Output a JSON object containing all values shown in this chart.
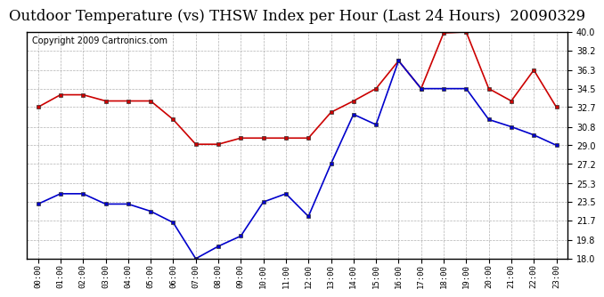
{
  "title": "Outdoor Temperature (vs) THSW Index per Hour (Last 24 Hours)  20090329",
  "copyright": "Copyright 2009 Cartronics.com",
  "hours": [
    "00:00",
    "01:00",
    "02:00",
    "03:00",
    "04:00",
    "05:00",
    "06:00",
    "07:00",
    "08:00",
    "09:00",
    "10:00",
    "11:00",
    "12:00",
    "13:00",
    "14:00",
    "15:00",
    "16:00",
    "17:00",
    "18:00",
    "19:00",
    "20:00",
    "21:00",
    "22:00",
    "23:00"
  ],
  "temp": [
    32.7,
    33.9,
    33.9,
    33.3,
    33.3,
    33.3,
    31.5,
    29.1,
    29.1,
    29.7,
    29.7,
    29.7,
    29.7,
    32.2,
    33.3,
    34.5,
    37.2,
    34.5,
    39.9,
    40.0,
    34.5,
    33.3,
    36.3,
    32.7
  ],
  "thsw": [
    23.3,
    24.3,
    24.3,
    23.3,
    23.3,
    22.6,
    21.5,
    18.0,
    19.2,
    20.2,
    23.5,
    24.3,
    22.1,
    27.2,
    32.0,
    31.0,
    37.2,
    34.5,
    34.5,
    34.5,
    31.5,
    30.8,
    30.0,
    29.0
  ],
  "temp_color": "#cc0000",
  "thsw_color": "#0000cc",
  "bg_color": "#ffffff",
  "grid_color": "#aaaaaa",
  "ylim_min": 18.0,
  "ylim_max": 40.0,
  "yticks": [
    18.0,
    19.8,
    21.7,
    23.5,
    25.3,
    27.2,
    29.0,
    30.8,
    32.7,
    34.5,
    36.3,
    38.2,
    40.0
  ],
  "title_fontsize": 12,
  "copyright_fontsize": 7,
  "markersize": 3.5
}
